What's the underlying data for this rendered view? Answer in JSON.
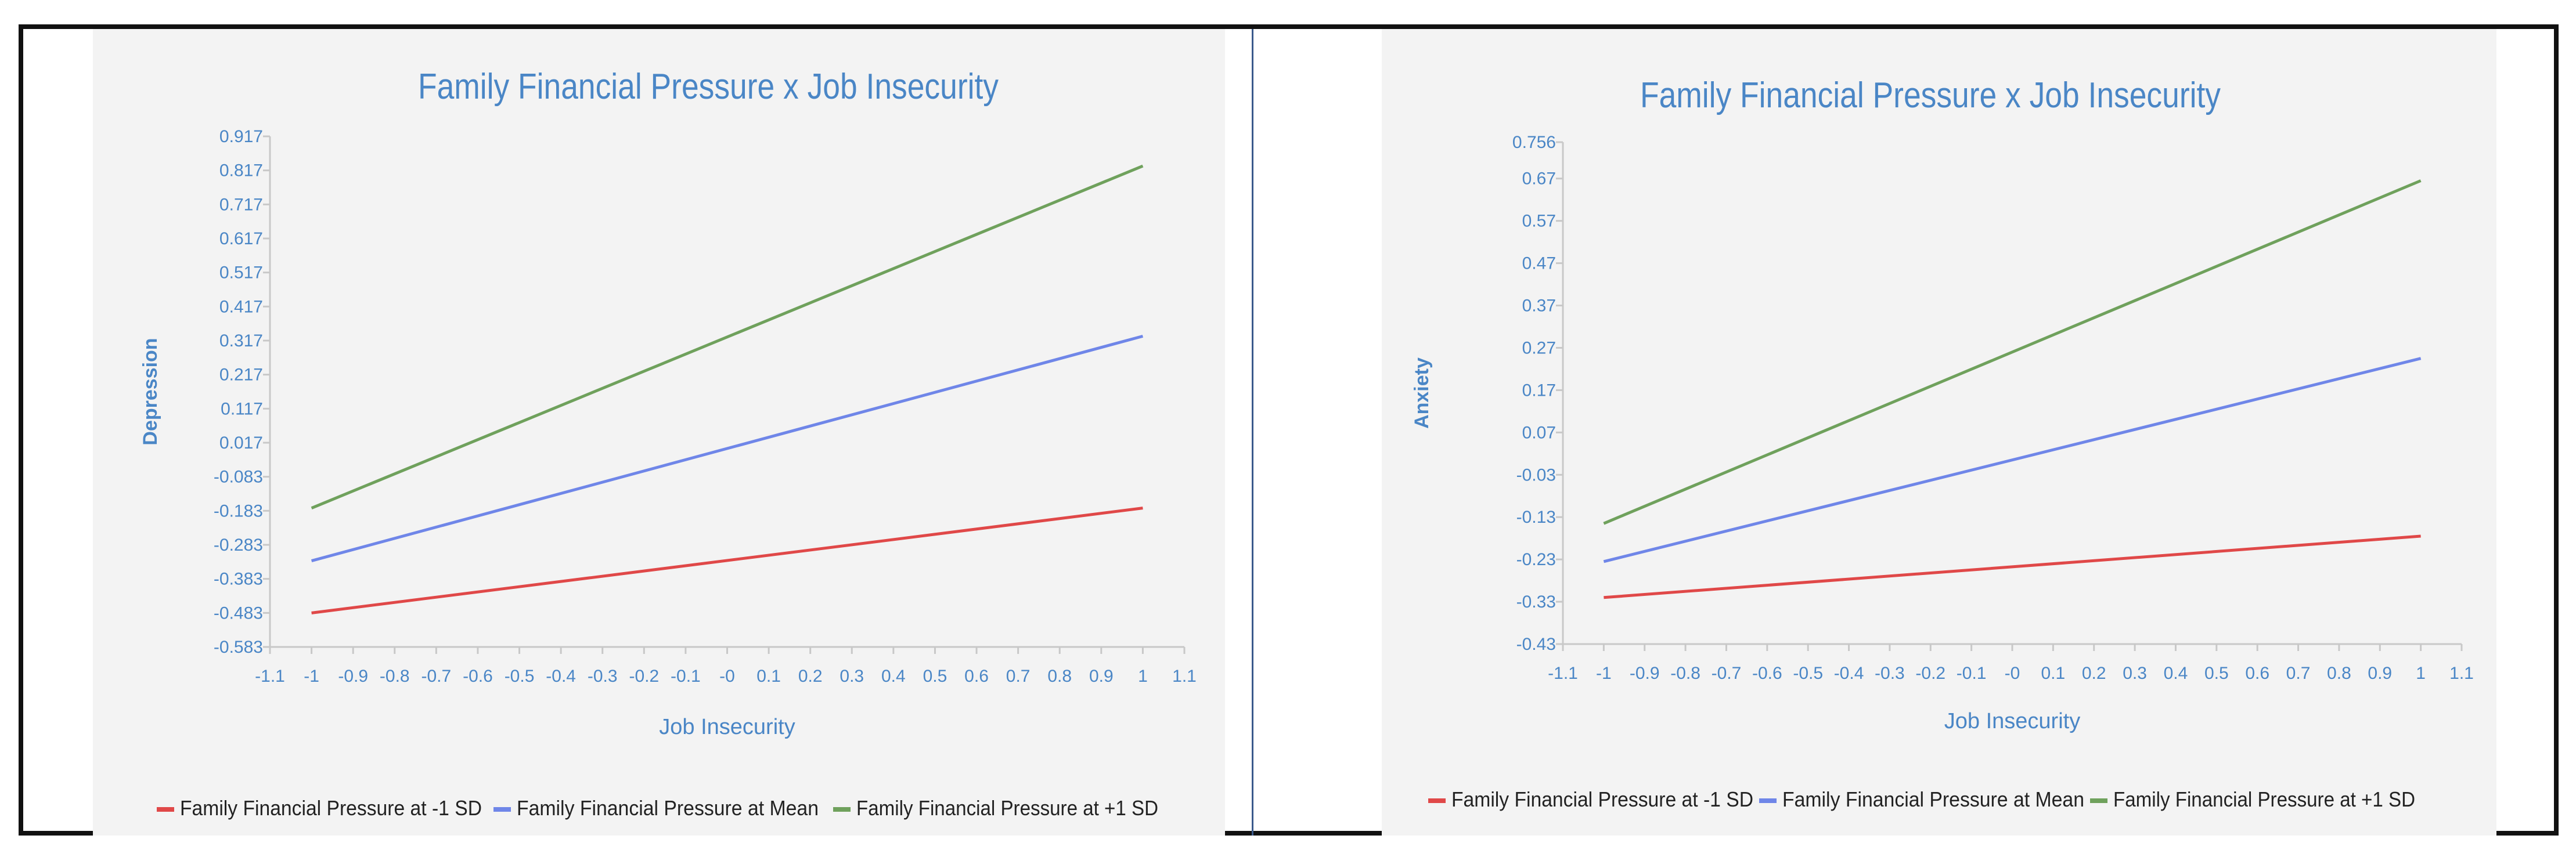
{
  "chart_data": [
    {
      "type": "line",
      "title": "Family Financial Pressure x Job Insecurity",
      "xlabel": "Job Insecurity",
      "ylabel": "Depression",
      "xlim": [
        -1.1,
        1.1
      ],
      "ylim": [
        -0.583,
        0.917
      ],
      "x_ticks": [
        "-1.1",
        "-1",
        "-0.9",
        "-0.8",
        "-0.7",
        "-0.6",
        "-0.5",
        "-0.4",
        "-0.3",
        "-0.2",
        "-0.1",
        "-0",
        "0.1",
        "0.2",
        "0.3",
        "0.4",
        "0.5",
        "0.6",
        "0.7",
        "0.8",
        "0.9",
        "1",
        "1.1"
      ],
      "y_ticks": [
        "-0.583",
        "-0.483",
        "-0.383",
        "-0.283",
        "-0.183",
        "-0.083",
        "0.017",
        "0.117",
        "0.217",
        "0.317",
        "0.417",
        "0.517",
        "0.617",
        "0.717",
        "0.817",
        "0.917"
      ],
      "legend_position": "bottom",
      "series": [
        {
          "name": "Family Financial Pressure at -1 SD",
          "color": "#e04848",
          "x": [
            -1,
            1
          ],
          "y": [
            -0.483,
            -0.175
          ]
        },
        {
          "name": "Family Financial Pressure at Mean",
          "color": "#6f86e8",
          "x": [
            -1,
            1
          ],
          "y": [
            -0.33,
            0.33
          ]
        },
        {
          "name": "Family Financial Pressure at +1 SD",
          "color": "#6fa15c",
          "x": [
            -1,
            1
          ],
          "y": [
            -0.175,
            0.83
          ]
        }
      ]
    },
    {
      "type": "line",
      "title": "Family Financial Pressure x Job Insecurity",
      "xlabel": "Job Insecurity",
      "ylabel": "Anxiety",
      "xlim": [
        -1.1,
        1.1
      ],
      "ylim": [
        -0.43,
        0.756
      ],
      "x_ticks": [
        "-1.1",
        "-1",
        "-0.9",
        "-0.8",
        "-0.7",
        "-0.6",
        "-0.5",
        "-0.4",
        "-0.3",
        "-0.2",
        "-0.1",
        "-0",
        "0.1",
        "0.2",
        "0.3",
        "0.4",
        "0.5",
        "0.6",
        "0.7",
        "0.8",
        "0.9",
        "1",
        "1.1"
      ],
      "y_ticks": [
        "-0.43",
        "-0.33",
        "-0.23",
        "-0.13",
        "-0.03",
        "0.07",
        "0.17",
        "0.27",
        "0.37",
        "0.47",
        "0.57",
        "0.67",
        "0.756"
      ],
      "legend_position": "bottom",
      "series": [
        {
          "name": "Family Financial Pressure at -1 SD",
          "color": "#e04848",
          "x": [
            -1,
            1
          ],
          "y": [
            -0.32,
            -0.175
          ]
        },
        {
          "name": "Family Financial Pressure at Mean",
          "color": "#6f86e8",
          "x": [
            -1,
            1
          ],
          "y": [
            -0.235,
            0.245
          ]
        },
        {
          "name": "Family Financial Pressure at +1 SD",
          "color": "#6fa15c",
          "x": [
            -1,
            1
          ],
          "y": [
            -0.145,
            0.665
          ]
        }
      ]
    }
  ]
}
